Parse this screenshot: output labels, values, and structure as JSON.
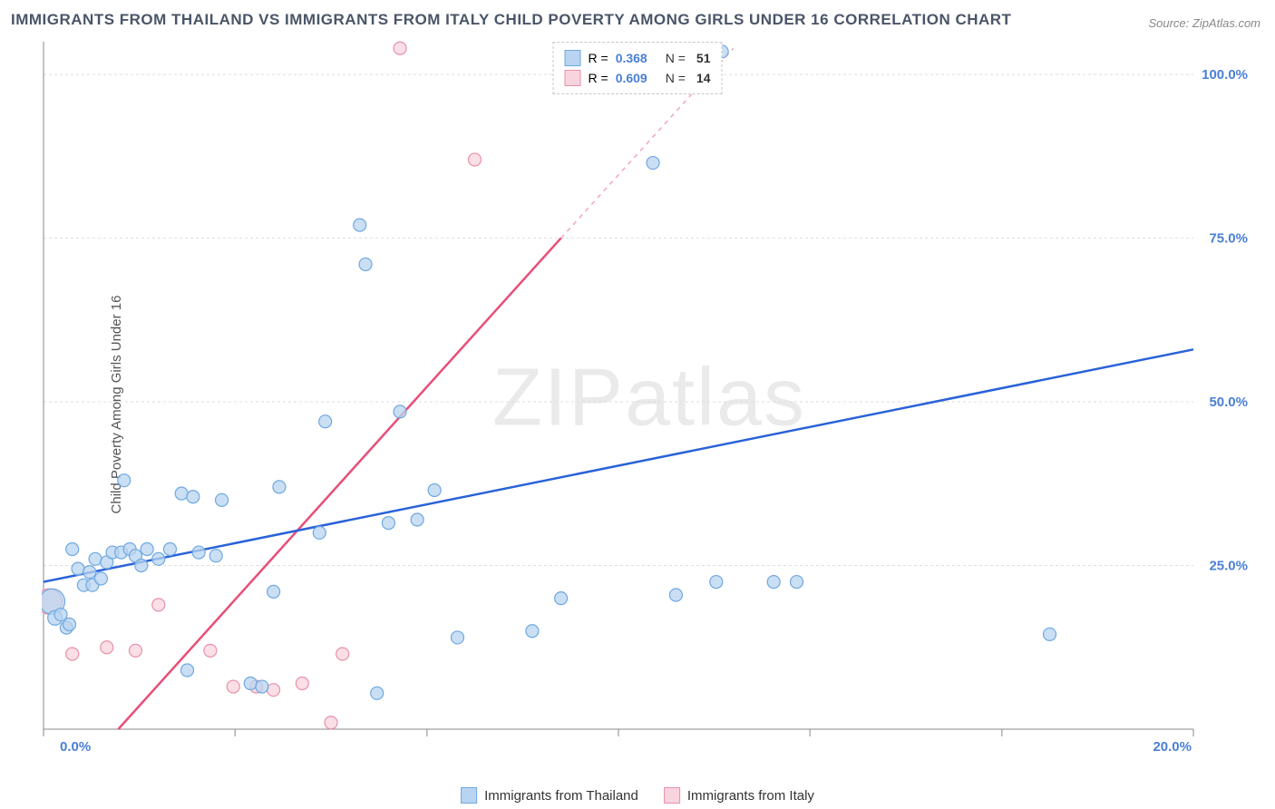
{
  "title": "IMMIGRANTS FROM THAILAND VS IMMIGRANTS FROM ITALY CHILD POVERTY AMONG GIRLS UNDER 16 CORRELATION CHART",
  "source": "Source: ZipAtlas.com",
  "yaxis_label": "Child Poverty Among Girls Under 16",
  "watermark": "ZIPatlas",
  "chart": {
    "type": "scatter",
    "xlim": [
      0,
      20
    ],
    "ylim": [
      0,
      105
    ],
    "xticks": [
      0,
      3.33,
      6.67,
      10,
      13.33,
      16.67,
      20
    ],
    "xtick_labels": [
      "0.0%",
      "",
      "",
      "",
      "",
      "",
      "20.0%"
    ],
    "yticks": [
      25,
      50,
      75,
      100
    ],
    "ytick_labels": [
      "25.0%",
      "50.0%",
      "75.0%",
      "100.0%"
    ],
    "grid_color": "#dddddd",
    "background": "#ffffff",
    "series": [
      {
        "name": "Immigrants from Thailand",
        "fill": "#b8d4f0",
        "stroke": "#6fa8e0",
        "line_stroke": "#2962d9",
        "r_value": "0.368",
        "n_value": "51",
        "reg_x1": 0,
        "reg_y1": 22.5,
        "reg_x2": 20,
        "reg_y2": 58,
        "points": [
          {
            "x": 0.15,
            "y": 19.5,
            "r": 14
          },
          {
            "x": 0.2,
            "y": 17,
            "r": 8
          },
          {
            "x": 0.3,
            "y": 17.5,
            "r": 7
          },
          {
            "x": 0.4,
            "y": 15.5,
            "r": 7
          },
          {
            "x": 0.45,
            "y": 16,
            "r": 7
          },
          {
            "x": 0.5,
            "y": 27.5,
            "r": 7
          },
          {
            "x": 0.6,
            "y": 24.5,
            "r": 7
          },
          {
            "x": 0.7,
            "y": 22,
            "r": 7
          },
          {
            "x": 0.8,
            "y": 24,
            "r": 7
          },
          {
            "x": 0.85,
            "y": 22,
            "r": 7
          },
          {
            "x": 0.9,
            "y": 26,
            "r": 7
          },
          {
            "x": 1.0,
            "y": 23,
            "r": 7
          },
          {
            "x": 1.1,
            "y": 25.5,
            "r": 7
          },
          {
            "x": 1.2,
            "y": 27,
            "r": 7
          },
          {
            "x": 1.35,
            "y": 27,
            "r": 7
          },
          {
            "x": 1.5,
            "y": 27.5,
            "r": 7
          },
          {
            "x": 1.6,
            "y": 26.5,
            "r": 7
          },
          {
            "x": 1.7,
            "y": 25,
            "r": 7
          },
          {
            "x": 1.8,
            "y": 27.5,
            "r": 7
          },
          {
            "x": 1.4,
            "y": 38,
            "r": 7
          },
          {
            "x": 2.0,
            "y": 26,
            "r": 7
          },
          {
            "x": 2.2,
            "y": 27.5,
            "r": 7
          },
          {
            "x": 2.4,
            "y": 36,
            "r": 7
          },
          {
            "x": 2.5,
            "y": 9,
            "r": 7
          },
          {
            "x": 2.6,
            "y": 35.5,
            "r": 7
          },
          {
            "x": 2.7,
            "y": 27,
            "r": 7
          },
          {
            "x": 3.0,
            "y": 26.5,
            "r": 7
          },
          {
            "x": 3.1,
            "y": 35,
            "r": 7
          },
          {
            "x": 3.6,
            "y": 7,
            "r": 7
          },
          {
            "x": 3.8,
            "y": 6.5,
            "r": 7
          },
          {
            "x": 4.0,
            "y": 21,
            "r": 7
          },
          {
            "x": 4.1,
            "y": 37,
            "r": 7
          },
          {
            "x": 4.8,
            "y": 30,
            "r": 7
          },
          {
            "x": 4.9,
            "y": 47,
            "r": 7
          },
          {
            "x": 5.5,
            "y": 77,
            "r": 7
          },
          {
            "x": 5.6,
            "y": 71,
            "r": 7
          },
          {
            "x": 5.8,
            "y": 5.5,
            "r": 7
          },
          {
            "x": 6.0,
            "y": 31.5,
            "r": 7
          },
          {
            "x": 6.2,
            "y": 48.5,
            "r": 7
          },
          {
            "x": 6.5,
            "y": 32,
            "r": 7
          },
          {
            "x": 6.8,
            "y": 36.5,
            "r": 7
          },
          {
            "x": 7.2,
            "y": 14,
            "r": 7
          },
          {
            "x": 8.5,
            "y": 15,
            "r": 7
          },
          {
            "x": 9.0,
            "y": 20,
            "r": 7
          },
          {
            "x": 10.6,
            "y": 86.5,
            "r": 7
          },
          {
            "x": 11.7,
            "y": 22.5,
            "r": 7
          },
          {
            "x": 11.8,
            "y": 103.5,
            "r": 7
          },
          {
            "x": 12.7,
            "y": 22.5,
            "r": 7
          },
          {
            "x": 13.1,
            "y": 22.5,
            "r": 7
          },
          {
            "x": 17.5,
            "y": 14.5,
            "r": 7
          },
          {
            "x": 11.0,
            "y": 20.5,
            "r": 7
          }
        ]
      },
      {
        "name": "Immigrants from Italy",
        "fill": "#f8d4de",
        "stroke": "#e891aa",
        "line_stroke": "#e84e78",
        "r_value": "0.609",
        "n_value": "14",
        "reg_x1": 1.3,
        "reg_y1": 0,
        "reg_x2": 9.0,
        "reg_y2": 75,
        "reg_dash_x2": 12.0,
        "reg_dash_y2": 104,
        "points": [
          {
            "x": 0.1,
            "y": 19.5,
            "r": 14
          },
          {
            "x": 0.5,
            "y": 11.5,
            "r": 7
          },
          {
            "x": 1.1,
            "y": 12.5,
            "r": 7
          },
          {
            "x": 1.6,
            "y": 12,
            "r": 7
          },
          {
            "x": 2.0,
            "y": 19,
            "r": 7
          },
          {
            "x": 2.9,
            "y": 12,
            "r": 7
          },
          {
            "x": 3.3,
            "y": 6.5,
            "r": 7
          },
          {
            "x": 3.7,
            "y": 6.5,
            "r": 7
          },
          {
            "x": 4.0,
            "y": 6,
            "r": 7
          },
          {
            "x": 4.5,
            "y": 7,
            "r": 7
          },
          {
            "x": 5.0,
            "y": 1,
            "r": 7
          },
          {
            "x": 5.2,
            "y": 11.5,
            "r": 7
          },
          {
            "x": 6.2,
            "y": 104,
            "r": 7
          },
          {
            "x": 7.5,
            "y": 87,
            "r": 7
          }
        ]
      }
    ]
  },
  "bottom_legend": {
    "item1": "Immigrants from Thailand",
    "item2": "Immigrants from Italy"
  }
}
